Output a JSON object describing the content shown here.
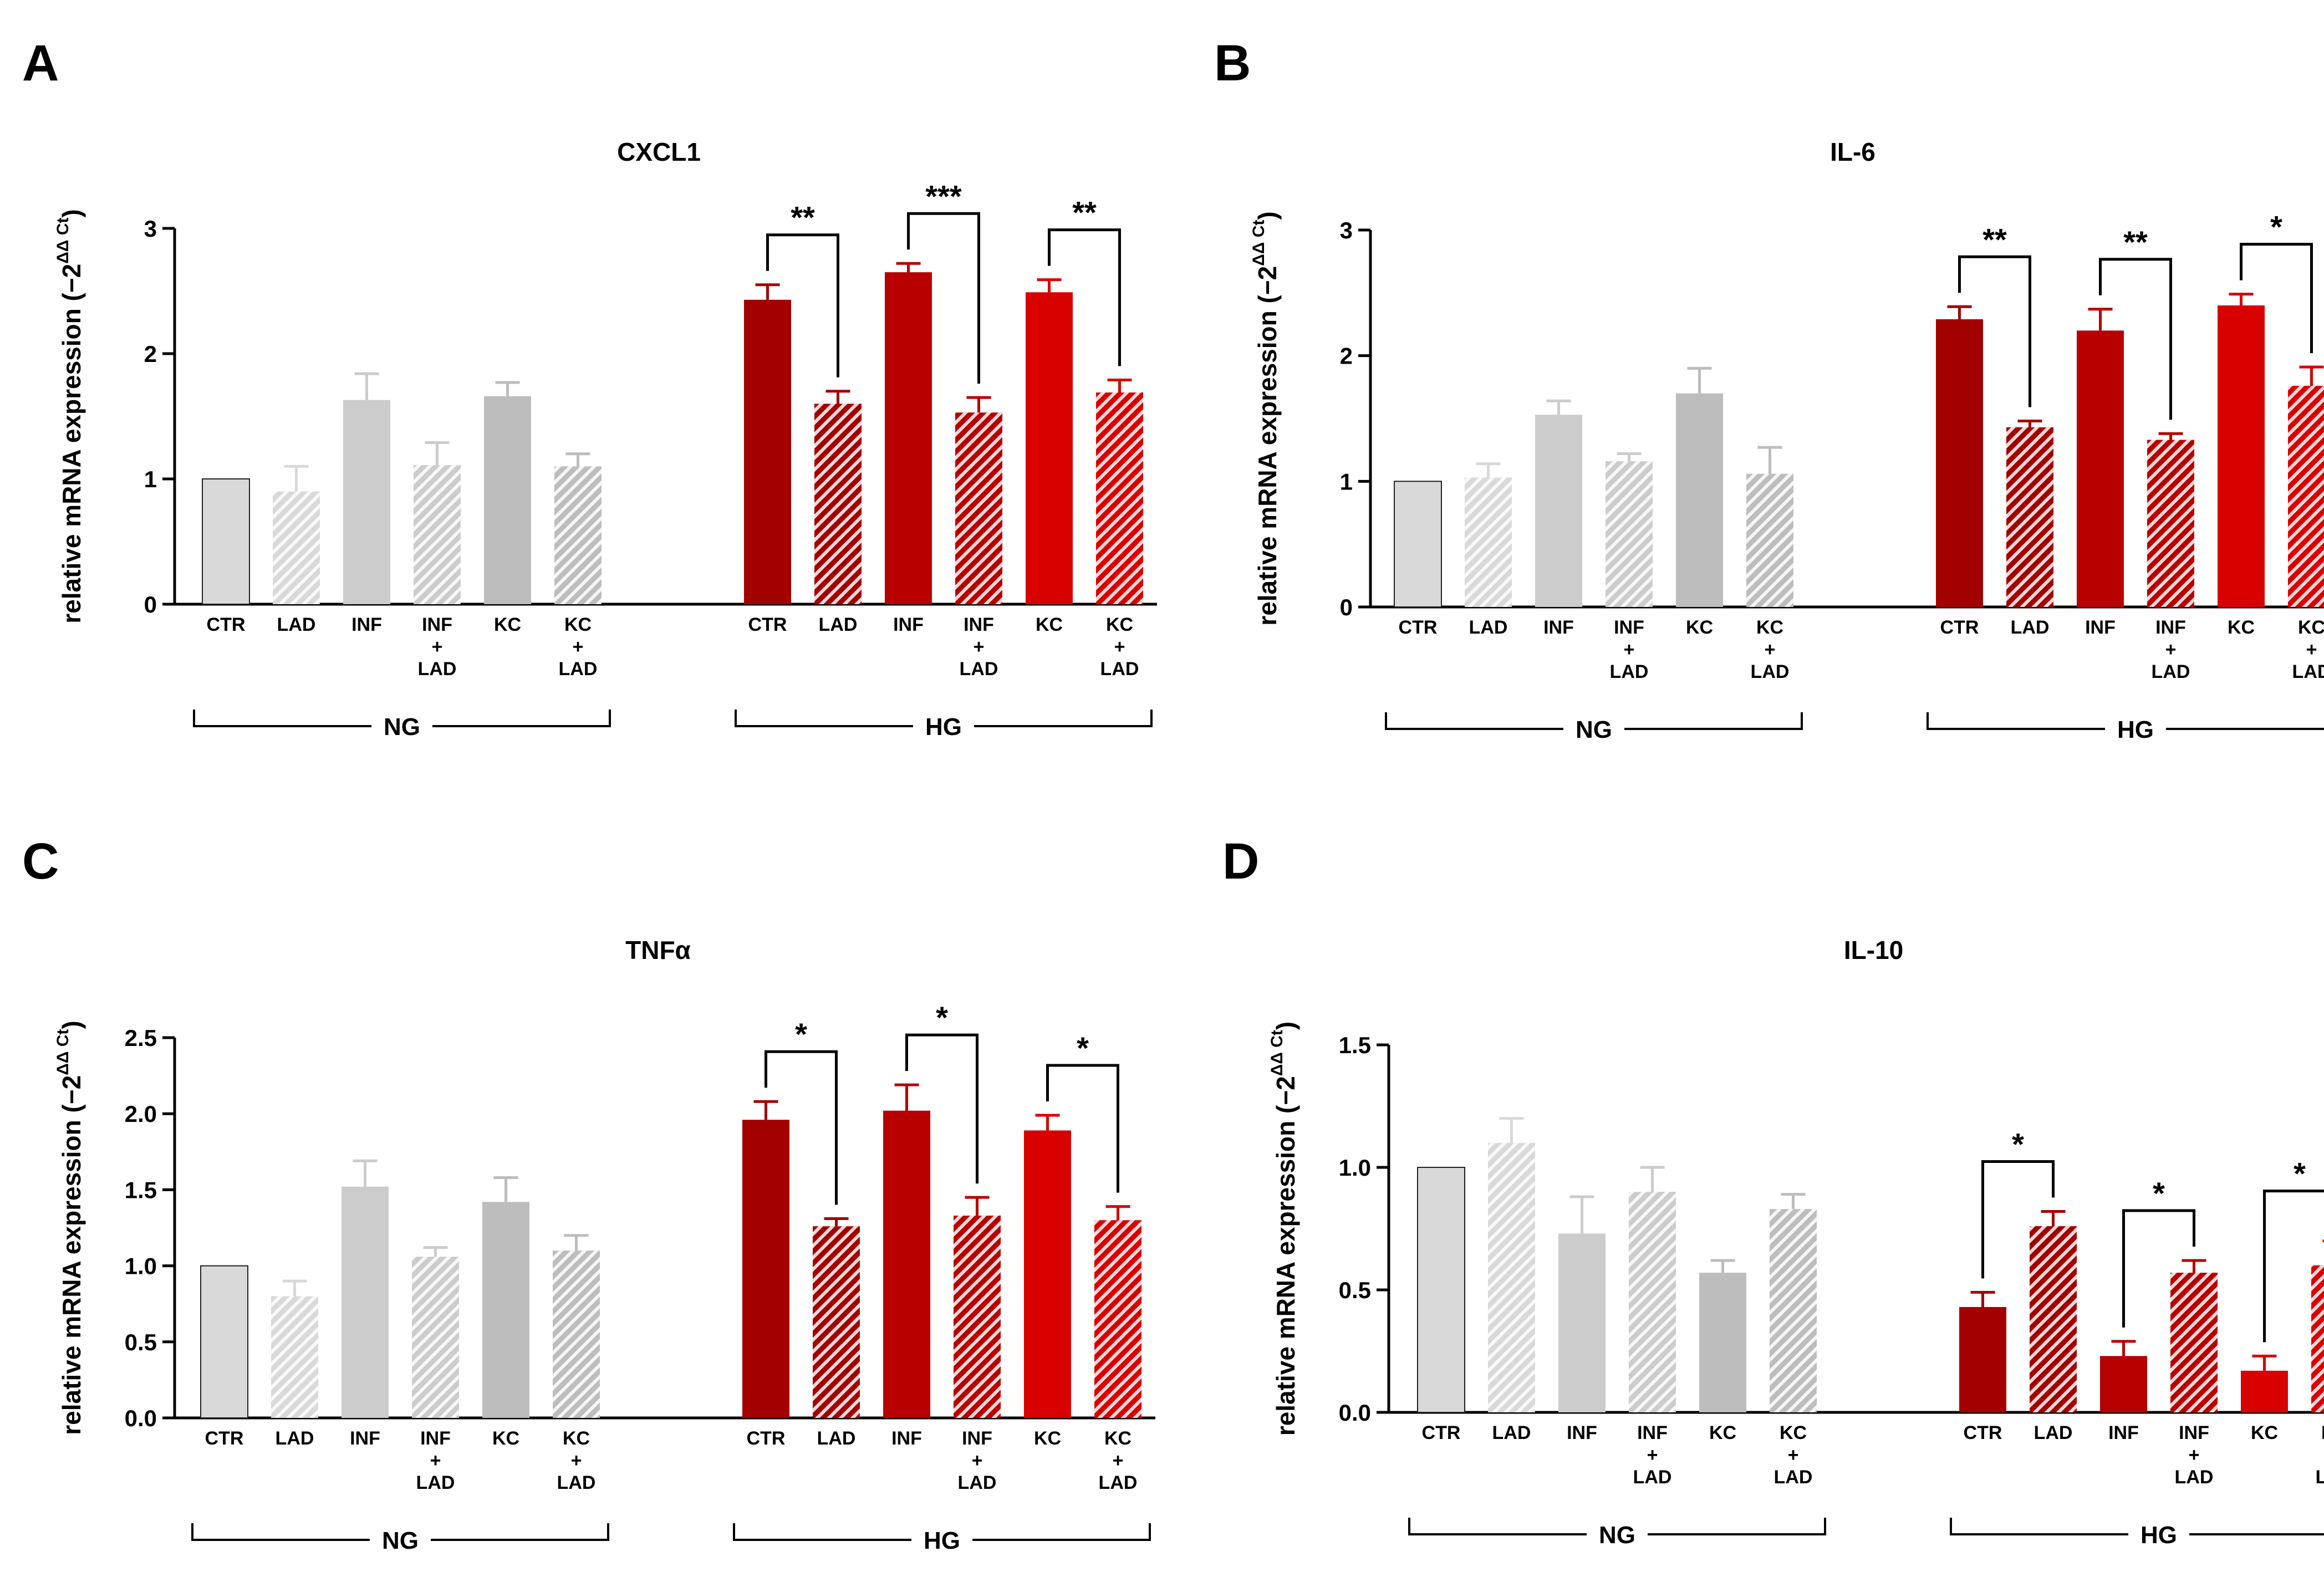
{
  "figure": {
    "colors": {
      "ng_light": "#d9d9d9",
      "ng_mid": "#cccccc",
      "ng_dark": "#bdbdbd",
      "hg_dark": "#a30000",
      "hg_mid": "#b80000",
      "hg_bright": "#d90000",
      "axis": "#000000",
      "hatch": "#ffffff"
    }
  },
  "chart_data": [
    {
      "panel_letter": "A",
      "type": "bar",
      "title": "CXCL1",
      "ylabel_main": "relative mRNA expression (−2",
      "ylabel_sup": "ΔΔ Ct",
      "ylabel_close": ")",
      "ylim": [
        0,
        3
      ],
      "yticks": [
        "0",
        "1",
        "2",
        "3"
      ],
      "categories": [
        "CTR",
        "LAD",
        "INF",
        "INF + LAD",
        "KC",
        "KC + LAD",
        "CTR",
        "LAD",
        "INF",
        "INF + LAD",
        "KC",
        "KC + LAD"
      ],
      "groups": [
        "NG",
        "HG"
      ],
      "series": [
        {
          "values": [
            1.0,
            0.9,
            1.63,
            1.11,
            1.66,
            1.1,
            2.43,
            1.6,
            2.65,
            1.53,
            2.49,
            1.69
          ]
        }
      ],
      "errors": [
        0,
        0.2,
        0.21,
        0.18,
        0.11,
        0.1,
        0.12,
        0.1,
        0.07,
        0.12,
        0.1,
        0.1
      ],
      "significance": [
        {
          "from": 6,
          "to": 7,
          "label": "**"
        },
        {
          "from": 8,
          "to": 9,
          "label": "***"
        },
        {
          "from": 10,
          "to": 11,
          "label": "**"
        }
      ]
    },
    {
      "panel_letter": "B",
      "type": "bar",
      "title": "IL-6",
      "ylabel_main": "relative mRNA expression (−2",
      "ylabel_sup": "ΔΔ Ct",
      "ylabel_close": ")",
      "ylim": [
        0,
        3
      ],
      "yticks": [
        "0",
        "1",
        "2",
        "3"
      ],
      "categories": [
        "CTR",
        "LAD",
        "INF",
        "INF + LAD",
        "KC",
        "KC + LAD",
        "CTR",
        "LAD",
        "INF",
        "INF + LAD",
        "KC",
        "KC + LAD"
      ],
      "groups": [
        "NG",
        "HG"
      ],
      "series": [
        {
          "values": [
            1.0,
            1.03,
            1.53,
            1.16,
            1.7,
            1.06,
            2.29,
            1.43,
            2.2,
            1.33,
            2.4,
            1.76
          ]
        }
      ],
      "errors": [
        0,
        0.11,
        0.11,
        0.06,
        0.2,
        0.21,
        0.1,
        0.05,
        0.17,
        0.05,
        0.09,
        0.15
      ],
      "significance": [
        {
          "from": 6,
          "to": 7,
          "label": "**"
        },
        {
          "from": 8,
          "to": 9,
          "label": "**"
        },
        {
          "from": 10,
          "to": 11,
          "label": "*"
        }
      ]
    },
    {
      "panel_letter": "C",
      "type": "bar",
      "title": "TNFα",
      "ylabel_main": "relative mRNA expression (−2",
      "ylabel_sup": "ΔΔ Ct",
      "ylabel_close": ")",
      "ylim": [
        0,
        2.5
      ],
      "yticks": [
        "0.0",
        "0.5",
        "1.0",
        "1.5",
        "2.0",
        "2.5"
      ],
      "categories": [
        "CTR",
        "LAD",
        "INF",
        "INF + LAD",
        "KC",
        "KC + LAD",
        "CTR",
        "LAD",
        "INF",
        "INF + LAD",
        "KC",
        "KC + LAD"
      ],
      "groups": [
        "NG",
        "HG"
      ],
      "series": [
        {
          "values": [
            1.0,
            0.8,
            1.52,
            1.06,
            1.42,
            1.1,
            1.96,
            1.26,
            2.02,
            1.33,
            1.89,
            1.3
          ]
        }
      ],
      "errors": [
        0,
        0.1,
        0.17,
        0.06,
        0.16,
        0.1,
        0.12,
        0.05,
        0.17,
        0.12,
        0.1,
        0.09
      ],
      "significance": [
        {
          "from": 6,
          "to": 7,
          "label": "*"
        },
        {
          "from": 8,
          "to": 9,
          "label": "*"
        },
        {
          "from": 10,
          "to": 11,
          "label": "*"
        }
      ]
    },
    {
      "panel_letter": "D",
      "type": "bar",
      "title": "IL-10",
      "ylabel_main": "relative mRNA expression (−2",
      "ylabel_sup": "ΔΔ Ct",
      "ylabel_close": ")",
      "ylim": [
        0,
        1.5
      ],
      "yticks": [
        "0.0",
        "0.5",
        "1.0",
        "1.5"
      ],
      "categories": [
        "CTR",
        "LAD",
        "INF",
        "INF + LAD",
        "KC",
        "KC + LAD",
        "CTR",
        "LAD",
        "INF",
        "INF + LAD",
        "KC",
        "KC + LAD"
      ],
      "groups": [
        "NG",
        "HG"
      ],
      "series": [
        {
          "values": [
            1.0,
            1.1,
            0.73,
            0.9,
            0.57,
            0.83,
            0.43,
            0.76,
            0.23,
            0.57,
            0.17,
            0.6
          ]
        }
      ],
      "errors": [
        0,
        0.1,
        0.15,
        0.1,
        0.05,
        0.06,
        0.06,
        0.06,
        0.06,
        0.05,
        0.06,
        0.1
      ],
      "significance": [
        {
          "from": 6,
          "to": 7,
          "label": "*"
        },
        {
          "from": 8,
          "to": 9,
          "label": "*"
        },
        {
          "from": 10,
          "to": 11,
          "label": "*"
        }
      ]
    }
  ]
}
